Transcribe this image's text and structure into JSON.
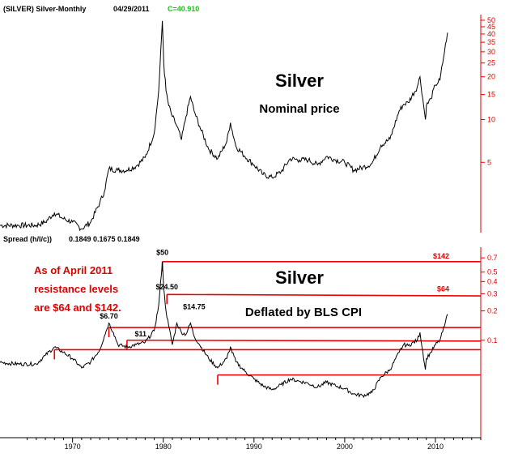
{
  "header": {
    "symbol": "(SILVER) Silver-Monthly",
    "date": "04/29/2011",
    "close": "C=40.910",
    "colors": {
      "close": "#22bb22",
      "axis": "#e00000",
      "resistance": "#ee0000"
    }
  },
  "lower_header": {
    "label": "Spread (h/l/c))",
    "values": "0.1849  0.1675  0.1849"
  },
  "note_lines": [
    "As of April 2011",
    "resistance levels",
    "are $64 and $142."
  ],
  "chart_data": [
    {
      "type": "line",
      "title": "Silver",
      "subtitle": "Nominal price",
      "yscale": "log",
      "ylim": [
        1.6,
        52
      ],
      "y_ticks": [
        5,
        10,
        15,
        20,
        25,
        30,
        35,
        40,
        45,
        50
      ],
      "xlim": [
        1962,
        2015
      ],
      "x_ticks": [
        1970,
        1980,
        1990,
        2000,
        2010
      ],
      "grid": false,
      "series": [
        {
          "x": [
            1962,
            1964,
            1966,
            1967,
            1968,
            1969,
            1970,
            1971,
            1972,
            1973,
            1973.5,
            1974,
            1975,
            1976,
            1977,
            1978,
            1979,
            1979.5,
            1979.9,
            1980.05,
            1980.3,
            1980.6,
            1981,
            1981.5,
            1982,
            1982.5,
            1983,
            1983.4,
            1984,
            1985,
            1986,
            1987,
            1987.4,
            1988,
            1989,
            1990,
            1991,
            1992,
            1993,
            1994,
            1995,
            1996,
            1997,
            1998,
            1999,
            2000,
            2001,
            2002,
            2003,
            2004,
            2005,
            2006,
            2006.5,
            2007,
            2008,
            2008.3,
            2008.9,
            2009,
            2009.5,
            2010,
            2010.5,
            2011,
            2011.33
          ],
          "values": [
            1.8,
            1.8,
            1.8,
            1.9,
            2.2,
            2.0,
            1.9,
            1.7,
            1.9,
            2.6,
            3.1,
            4.5,
            4.4,
            4.4,
            4.7,
            5.4,
            8.0,
            16.0,
            49.5,
            25.0,
            16.0,
            12.5,
            10.5,
            9.0,
            7.2,
            10.5,
            14.5,
            11.5,
            9.0,
            6.2,
            5.3,
            7.0,
            9.5,
            6.5,
            5.5,
            4.8,
            4.1,
            3.9,
            4.3,
            5.3,
            5.2,
            5.2,
            4.8,
            5.5,
            5.2,
            5.0,
            4.4,
            4.6,
            4.9,
            6.6,
            7.3,
            11.5,
            12.8,
            13.2,
            17.0,
            20.0,
            10.0,
            12.5,
            14.0,
            17.5,
            19.0,
            30.0,
            40.9
          ]
        }
      ]
    },
    {
      "type": "line",
      "title": "Silver",
      "subtitle": "Deflated by BLS CPI",
      "yscale": "log",
      "ylim": [
        0.01,
        0.85
      ],
      "y_ticks": [
        0.1,
        0.2,
        0.3,
        0.4,
        0.5,
        0.7
      ],
      "xlim": [
        1962,
        2015
      ],
      "x_ticks": [
        1970,
        1980,
        1990,
        2000,
        2010
      ],
      "grid": false,
      "series": [
        {
          "x": [
            1962,
            1964,
            1966,
            1967,
            1968,
            1969,
            1970,
            1971,
            1972,
            1973,
            1973.5,
            1974,
            1974.5,
            1975,
            1976,
            1977,
            1978,
            1979,
            1979.5,
            1979.9,
            1980.05,
            1980.3,
            1980.6,
            1981,
            1981.5,
            1982,
            1982.5,
            1983,
            1983.4,
            1984,
            1985,
            1986,
            1987,
            1987.4,
            1988,
            1989,
            1990,
            1991,
            1992,
            1993,
            1994,
            1995,
            1996,
            1997,
            1998,
            1999,
            2000,
            2001,
            2002,
            2003,
            2004,
            2005,
            2006,
            2006.5,
            2007,
            2008,
            2008.3,
            2008.9,
            2009,
            2009.5,
            2010,
            2010.5,
            2011,
            2011.33
          ],
          "values": [
            0.059,
            0.057,
            0.057,
            0.07,
            0.085,
            0.075,
            0.065,
            0.052,
            0.06,
            0.08,
            0.11,
            0.15,
            0.12,
            0.09,
            0.085,
            0.09,
            0.095,
            0.125,
            0.23,
            0.64,
            0.34,
            0.2,
            0.14,
            0.09,
            0.15,
            0.12,
            0.115,
            0.15,
            0.11,
            0.09,
            0.065,
            0.052,
            0.065,
            0.085,
            0.06,
            0.048,
            0.04,
            0.034,
            0.031,
            0.035,
            0.04,
            0.038,
            0.036,
            0.033,
            0.037,
            0.034,
            0.032,
            0.028,
            0.027,
            0.029,
            0.042,
            0.05,
            0.075,
            0.09,
            0.088,
            0.1,
            0.12,
            0.05,
            0.065,
            0.075,
            0.09,
            0.1,
            0.14,
            0.185
          ]
        }
      ],
      "annotations": [
        {
          "label": "$6.70",
          "x": 1974.0,
          "y": 0.16
        },
        {
          "label": "$11",
          "x": 1977.5,
          "y": 0.105
        },
        {
          "label": "$50",
          "x": 1979.9,
          "y": 0.72
        },
        {
          "label": "$24.50",
          "x": 1980.4,
          "y": 0.32
        },
        {
          "label": "$14.75",
          "x": 1983.4,
          "y": 0.2
        }
      ],
      "resistance_lines": [
        {
          "x_start": 1979.9,
          "x_end": 2015,
          "y_start": 0.64,
          "y_end": 0.64,
          "label": "$142"
        },
        {
          "x_start": 1980.4,
          "x_end": 2015,
          "y_start": 0.295,
          "y_end": 0.285,
          "label": "$64"
        },
        {
          "x_start": 1974.0,
          "x_end": 2015,
          "y_start": 0.135,
          "y_end": 0.135
        },
        {
          "x_start": 1976.0,
          "x_end": 2015,
          "y_start": 0.1,
          "y_end": 0.098
        },
        {
          "x_start": 1968.0,
          "x_end": 2015,
          "y_start": 0.08,
          "y_end": 0.08
        },
        {
          "x_start": 1986.0,
          "x_end": 2015,
          "y_start": 0.044,
          "y_end": 0.044
        }
      ]
    }
  ]
}
